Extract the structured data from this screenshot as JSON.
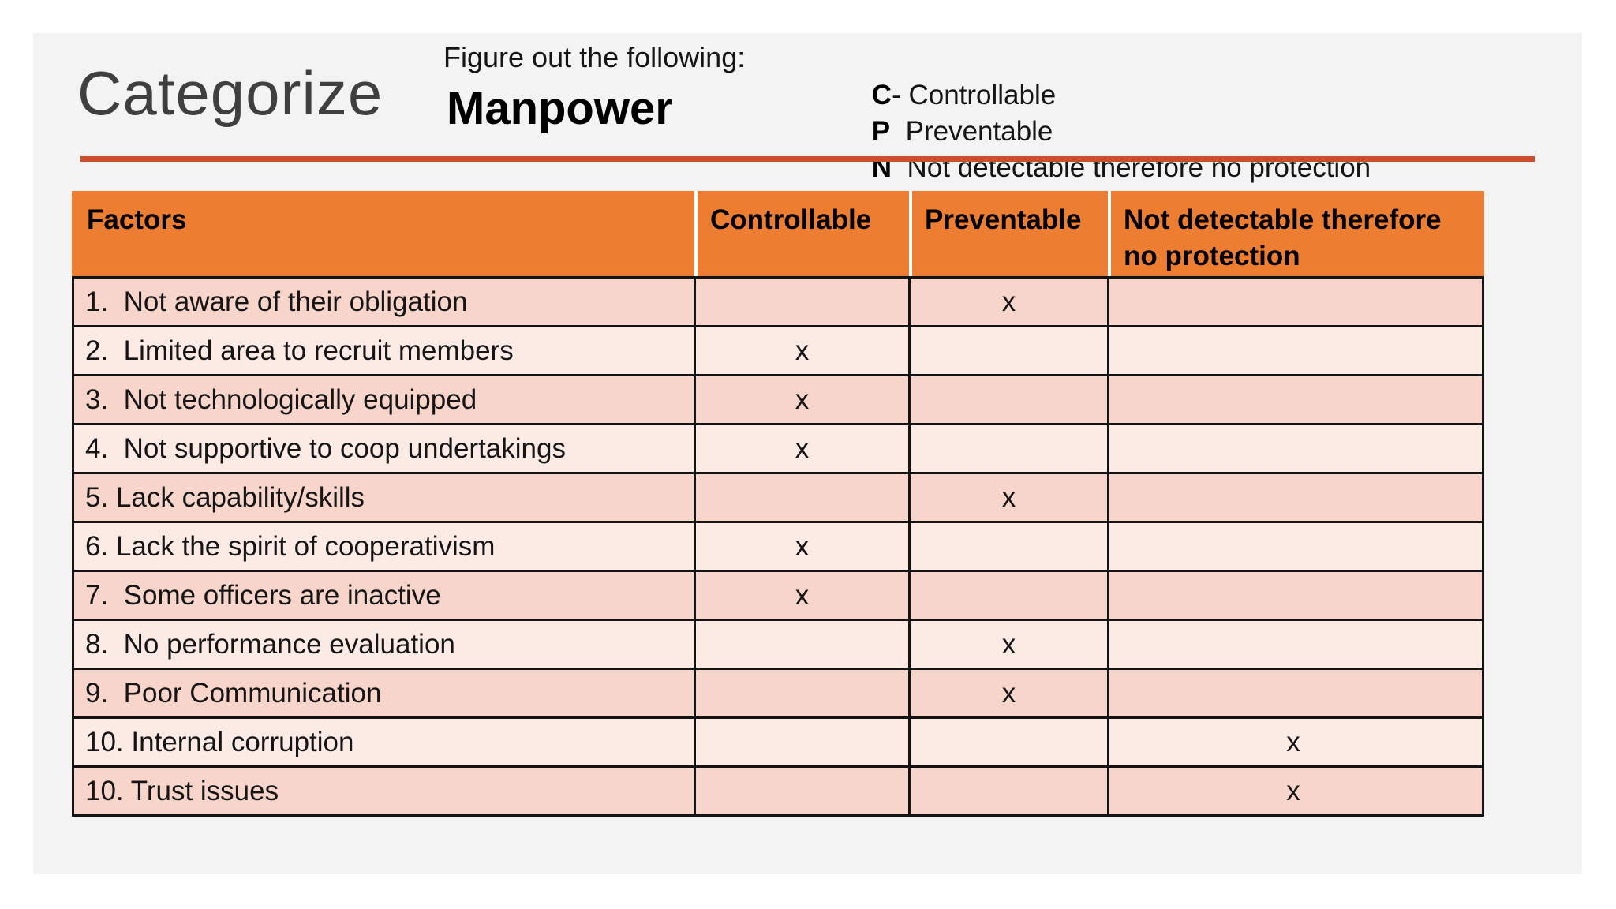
{
  "slide": {
    "title": "Categorize",
    "prompt_label": "Figure out the following:",
    "subject": "Manpower",
    "legend": [
      {
        "key": "C",
        "rest": "- Controllable"
      },
      {
        "key": "P",
        "rest": "  Preventable"
      },
      {
        "key": "N",
        "rest": "  Not detectable therefore no protection"
      }
    ]
  },
  "table": {
    "columns": [
      "Factors",
      "Controllable",
      "Preventable",
      "Not detectable therefore no protection"
    ],
    "mark_symbol": "x",
    "rows": [
      {
        "cells": [
          "1.  Not aware of their obligation",
          "",
          "x",
          ""
        ]
      },
      {
        "cells": [
          "2.  Limited area to recruit members",
          "x",
          "",
          ""
        ]
      },
      {
        "cells": [
          "3.  Not technologically equipped",
          "x",
          "",
          ""
        ]
      },
      {
        "cells": [
          "4.  Not supportive to coop undertakings",
          "x",
          "",
          ""
        ]
      },
      {
        "cells": [
          "5. Lack capability/skills",
          "",
          "x",
          ""
        ]
      },
      {
        "cells": [
          "6. Lack the spirit of cooperativism",
          "x",
          "",
          ""
        ]
      },
      {
        "cells": [
          "7.  Some officers are inactive",
          "x",
          "",
          ""
        ]
      },
      {
        "cells": [
          "8.  No performance evaluation",
          "",
          "x",
          ""
        ]
      },
      {
        "cells": [
          "9.  Poor Communication",
          "",
          "x",
          ""
        ]
      },
      {
        "cells": [
          "10. Internal corruption",
          "",
          "",
          "x"
        ]
      },
      {
        "cells": [
          "10. Trust issues",
          "",
          "",
          "x"
        ]
      }
    ]
  },
  "colors": {
    "slide_bg": "#F4F3F3",
    "header_bg": "#ED7D31",
    "row_dark": "#F8D5CA",
    "row_light": "#FCEAE5",
    "border_black": "#141414",
    "divider": "#C8502E",
    "title_color": "#3F3F3F",
    "text": "#151515"
  }
}
